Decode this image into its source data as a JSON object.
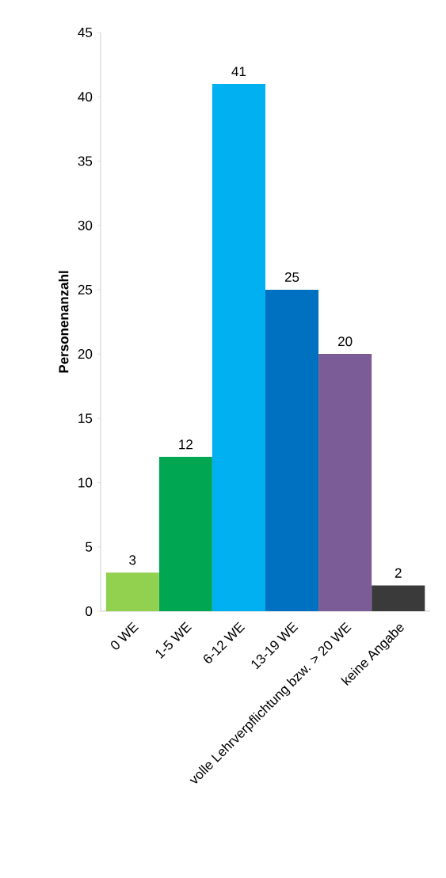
{
  "chart_data": {
    "type": "bar",
    "ylabel": "Personenanzahl",
    "categories": [
      "0 WE",
      "1-5 WE",
      "6-12 WE",
      "13-19 WE",
      "volle Lehrverpflichtung bzw. > 20 WE",
      "keine Angabe"
    ],
    "values": [
      3,
      12,
      41,
      25,
      20,
      2
    ],
    "colors": [
      "#92d050",
      "#00a651",
      "#00b0f0",
      "#0070c0",
      "#7b5c97",
      "#3a3a3a"
    ],
    "ylim": [
      0,
      45
    ],
    "yticks": [
      0,
      5,
      10,
      15,
      20,
      25,
      30,
      35,
      40,
      45
    ],
    "data_labels": true
  }
}
